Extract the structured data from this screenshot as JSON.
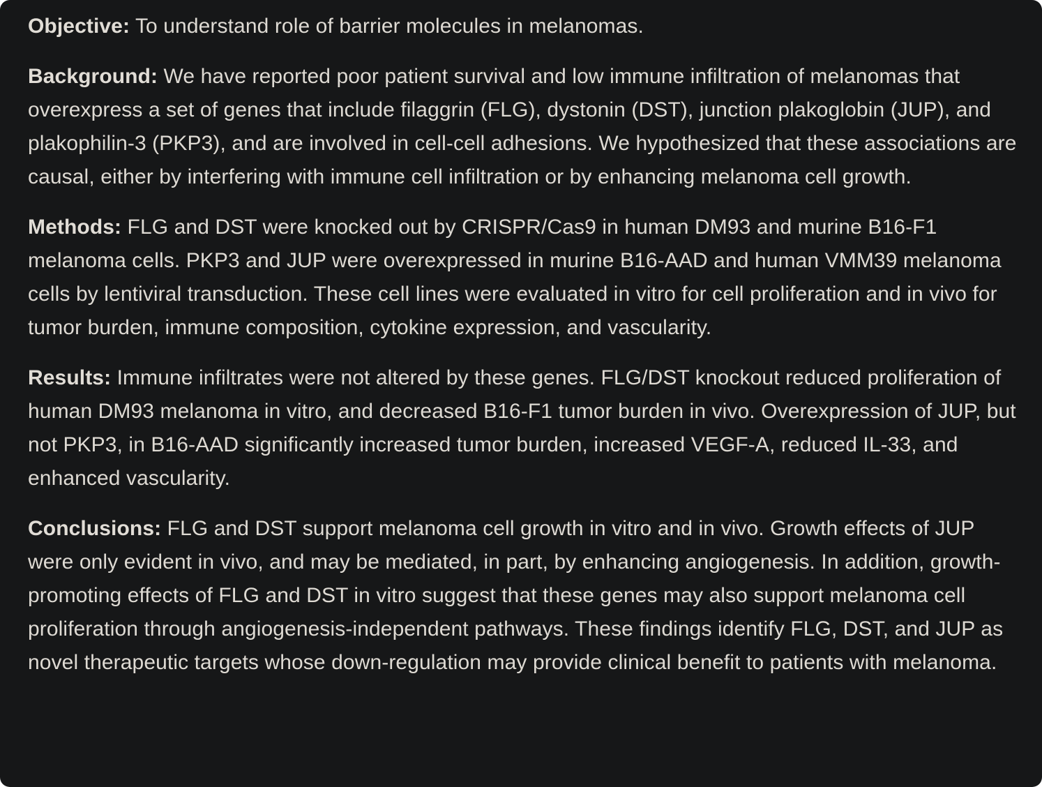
{
  "sections": [
    {
      "label": "Objective:",
      "text": " To understand role of barrier molecules in melanomas."
    },
    {
      "label": "Background:",
      "text": " We have reported poor patient survival and low immune infiltration of melanomas that overexpress a set of genes that include filaggrin (FLG), dystonin (DST), junction plakoglobin (JUP), and plakophilin-3 (PKP3), and are involved in cell-cell adhesions. We hypothesized that these associations are causal, either by interfering with immune cell infiltration or by enhancing melanoma cell growth."
    },
    {
      "label": "Methods:",
      "text": " FLG and DST were knocked out by CRISPR/Cas9 in human DM93 and murine B16-F1 melanoma cells. PKP3 and JUP were overexpressed in murine B16-AAD and human VMM39 melanoma cells by lentiviral transduction. These cell lines were evaluated in vitro for cell proliferation and in vivo for tumor burden, immune composition, cytokine expression, and vascularity."
    },
    {
      "label": "Results:",
      "text": " Immune infiltrates were not altered by these genes. FLG/DST knockout reduced proliferation of human DM93 melanoma in vitro, and decreased B16-F1 tumor burden in vivo. Overexpression of JUP, but not PKP3, in B16-AAD significantly increased tumor burden, increased VEGF-A, reduced IL-33, and enhanced vascularity."
    },
    {
      "label": "Conclusions:",
      "text": " FLG and DST support melanoma cell growth in vitro and in vivo. Growth effects of JUP were only evident in vivo, and may be mediated, in part, by enhancing angiogenesis. In addition, growth-promoting effects of FLG and DST in vitro suggest that these genes may also support melanoma cell proliferation through angiogenesis-independent pathways. These findings identify FLG, DST, and JUP as novel therapeutic targets whose down-regulation may provide clinical benefit to patients with melanoma."
    }
  ],
  "colors": {
    "background": "#161718",
    "text": "#dedad3"
  }
}
